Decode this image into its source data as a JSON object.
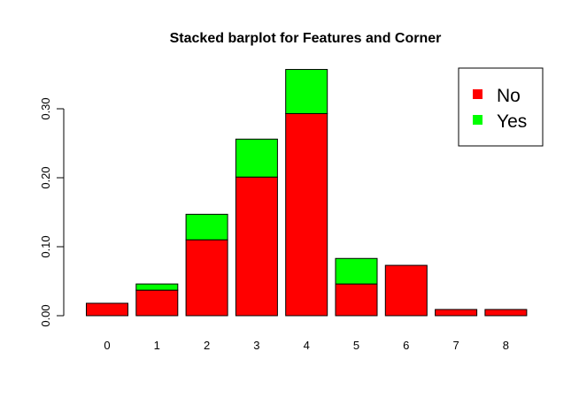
{
  "chart_data": {
    "type": "bar",
    "stacked": true,
    "title": "Stacked barplot for Features and Corner",
    "xlabel": "",
    "ylabel": "",
    "categories": [
      "0",
      "1",
      "2",
      "3",
      "4",
      "5",
      "6",
      "7",
      "8"
    ],
    "series": [
      {
        "name": "No",
        "color": "#ff0000",
        "values": [
          0.018,
          0.037,
          0.11,
          0.201,
          0.293,
          0.046,
          0.073,
          0.009,
          0.009
        ]
      },
      {
        "name": "Yes",
        "color": "#00ff00",
        "values": [
          0.0,
          0.009,
          0.037,
          0.055,
          0.064,
          0.037,
          0.0,
          0.0,
          0.0
        ]
      }
    ],
    "ylim": [
      0,
      0.36
    ],
    "yticks": [
      "0.00",
      "0.10",
      "0.20",
      "0.30"
    ],
    "grid": false,
    "legend_position": "top-right"
  }
}
